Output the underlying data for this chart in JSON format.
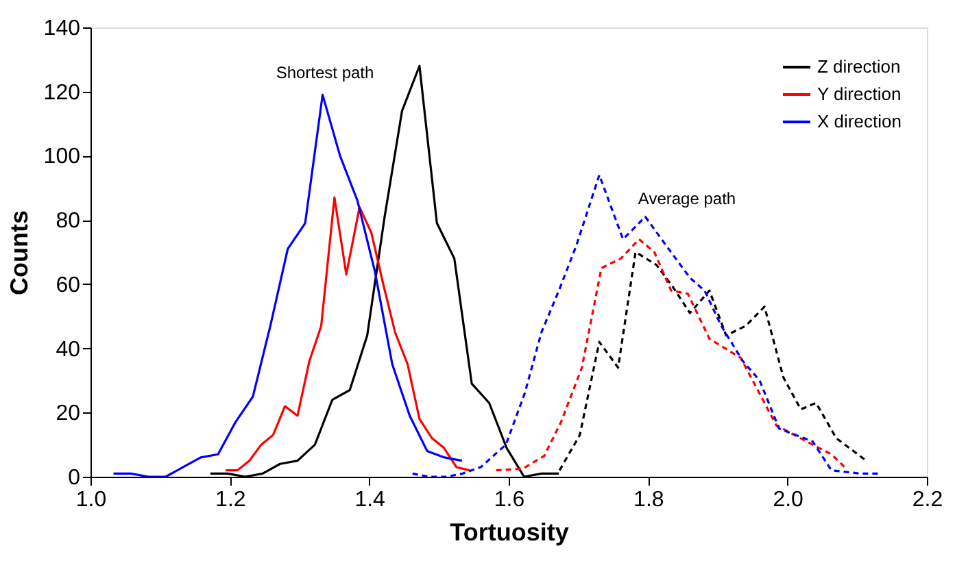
{
  "chart_data": {
    "type": "line",
    "xlabel": "Tortuosity",
    "ylabel": "Counts",
    "xlim": [
      1.0,
      2.2
    ],
    "ylim": [
      0,
      140
    ],
    "xticks": [
      {
        "value": 1.0,
        "label": "1.0"
      },
      {
        "value": 1.2,
        "label": "1.2"
      },
      {
        "value": 1.4,
        "label": "1.4"
      },
      {
        "value": 1.6,
        "label": "1.6"
      },
      {
        "value": 1.8,
        "label": "1.8"
      },
      {
        "value": 2.0,
        "label": "2.0"
      },
      {
        "value": 2.2,
        "label": "2.2"
      }
    ],
    "yticks": [
      0,
      20,
      40,
      60,
      80,
      100,
      120,
      140
    ],
    "grid": false,
    "legend": "top right",
    "marker": "none",
    "annotations": [
      "Shortest path",
      "Average path"
    ],
    "series": [
      {
        "name": "Z direction",
        "color": "#000000",
        "line_style": "solid",
        "x": [
          1.172,
          1.197,
          1.222,
          1.247,
          1.272,
          1.297,
          1.322,
          1.347,
          1.372,
          1.397,
          1.422,
          1.447,
          1.472,
          1.497,
          1.522,
          1.547,
          1.572,
          1.597,
          1.622,
          1.647,
          1.672
        ],
        "values": [
          1,
          1,
          0,
          1,
          4,
          5,
          10,
          24,
          27,
          44,
          81,
          114,
          128,
          79,
          68,
          29,
          23,
          9,
          0,
          1,
          1
        ]
      },
      {
        "name": "Y direction",
        "color": "#ff0000",
        "line_style": "solid",
        "x": [
          1.194,
          1.211,
          1.228,
          1.245,
          1.262,
          1.279,
          1.297,
          1.314,
          1.331,
          1.35,
          1.367,
          1.386,
          1.403,
          1.42,
          1.437,
          1.455,
          1.472,
          1.49,
          1.507,
          1.525,
          1.544
        ],
        "values": [
          2,
          2,
          5,
          10,
          13,
          22,
          19,
          36,
          47,
          87,
          63,
          84,
          76,
          60,
          45,
          35,
          18,
          12,
          9,
          3,
          2
        ]
      },
      {
        "name": "X direction",
        "color": "#0000ff",
        "line_style": "solid",
        "x": [
          1.033,
          1.058,
          1.083,
          1.108,
          1.133,
          1.158,
          1.183,
          1.208,
          1.233,
          1.258,
          1.283,
          1.308,
          1.333,
          1.358,
          1.383,
          1.408,
          1.433,
          1.458,
          1.483,
          1.508,
          1.533
        ],
        "values": [
          1,
          1,
          0,
          0,
          3,
          6,
          7,
          17,
          25,
          47,
          71,
          79,
          119,
          100,
          86,
          64,
          35,
          19,
          8,
          6,
          5
        ]
      },
      {
        "color": "#000000",
        "line_style": "dashed",
        "x": [
          1.673,
          1.702,
          1.73,
          1.757,
          1.782,
          1.812,
          1.836,
          1.86,
          1.888,
          1.912,
          1.94,
          1.967,
          1.994,
          2.019,
          2.041,
          2.07,
          2.113
        ],
        "values": [
          2,
          13,
          42,
          34,
          70,
          66,
          59,
          51,
          58,
          44,
          47,
          53,
          31,
          21,
          23,
          12,
          5
        ]
      },
      {
        "color": "#ff0000",
        "line_style": "dashed",
        "x": [
          1.582,
          1.62,
          1.651,
          1.675,
          1.705,
          1.733,
          1.761,
          1.787,
          1.809,
          1.833,
          1.857,
          1.888,
          1.933,
          1.984,
          2.036,
          2.063,
          2.082
        ],
        "values": [
          2,
          2.5,
          6.5,
          17,
          34,
          65,
          68,
          74,
          70,
          58,
          57,
          43,
          37,
          16,
          10,
          7,
          3
        ]
      },
      {
        "color": "#0000ff",
        "line_style": "dashed",
        "x": [
          1.462,
          1.486,
          1.51,
          1.534,
          1.56,
          1.596,
          1.623,
          1.647,
          1.672,
          1.697,
          1.73,
          1.764,
          1.796,
          1.826,
          1.86,
          1.881,
          1.905,
          1.936,
          1.96,
          1.988,
          2.036,
          2.063,
          2.104,
          2.132
        ],
        "values": [
          1,
          0,
          0,
          1,
          3,
          10,
          26,
          45,
          58,
          72,
          94,
          74,
          81,
          72,
          62,
          58,
          47,
          36,
          30,
          15,
          11,
          2,
          1,
          1
        ]
      }
    ]
  }
}
